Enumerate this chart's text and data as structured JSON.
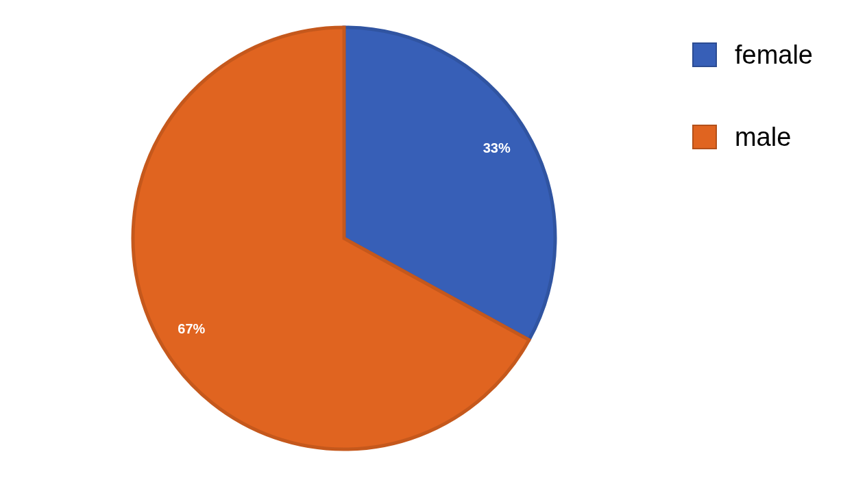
{
  "chart_data": {
    "type": "pie",
    "categories": [
      "female",
      "male"
    ],
    "values": [
      33,
      67
    ],
    "colors": [
      "#375fb7",
      "#e06420"
    ],
    "value_labels": [
      "33%",
      "67%"
    ],
    "legend": "top right"
  }
}
